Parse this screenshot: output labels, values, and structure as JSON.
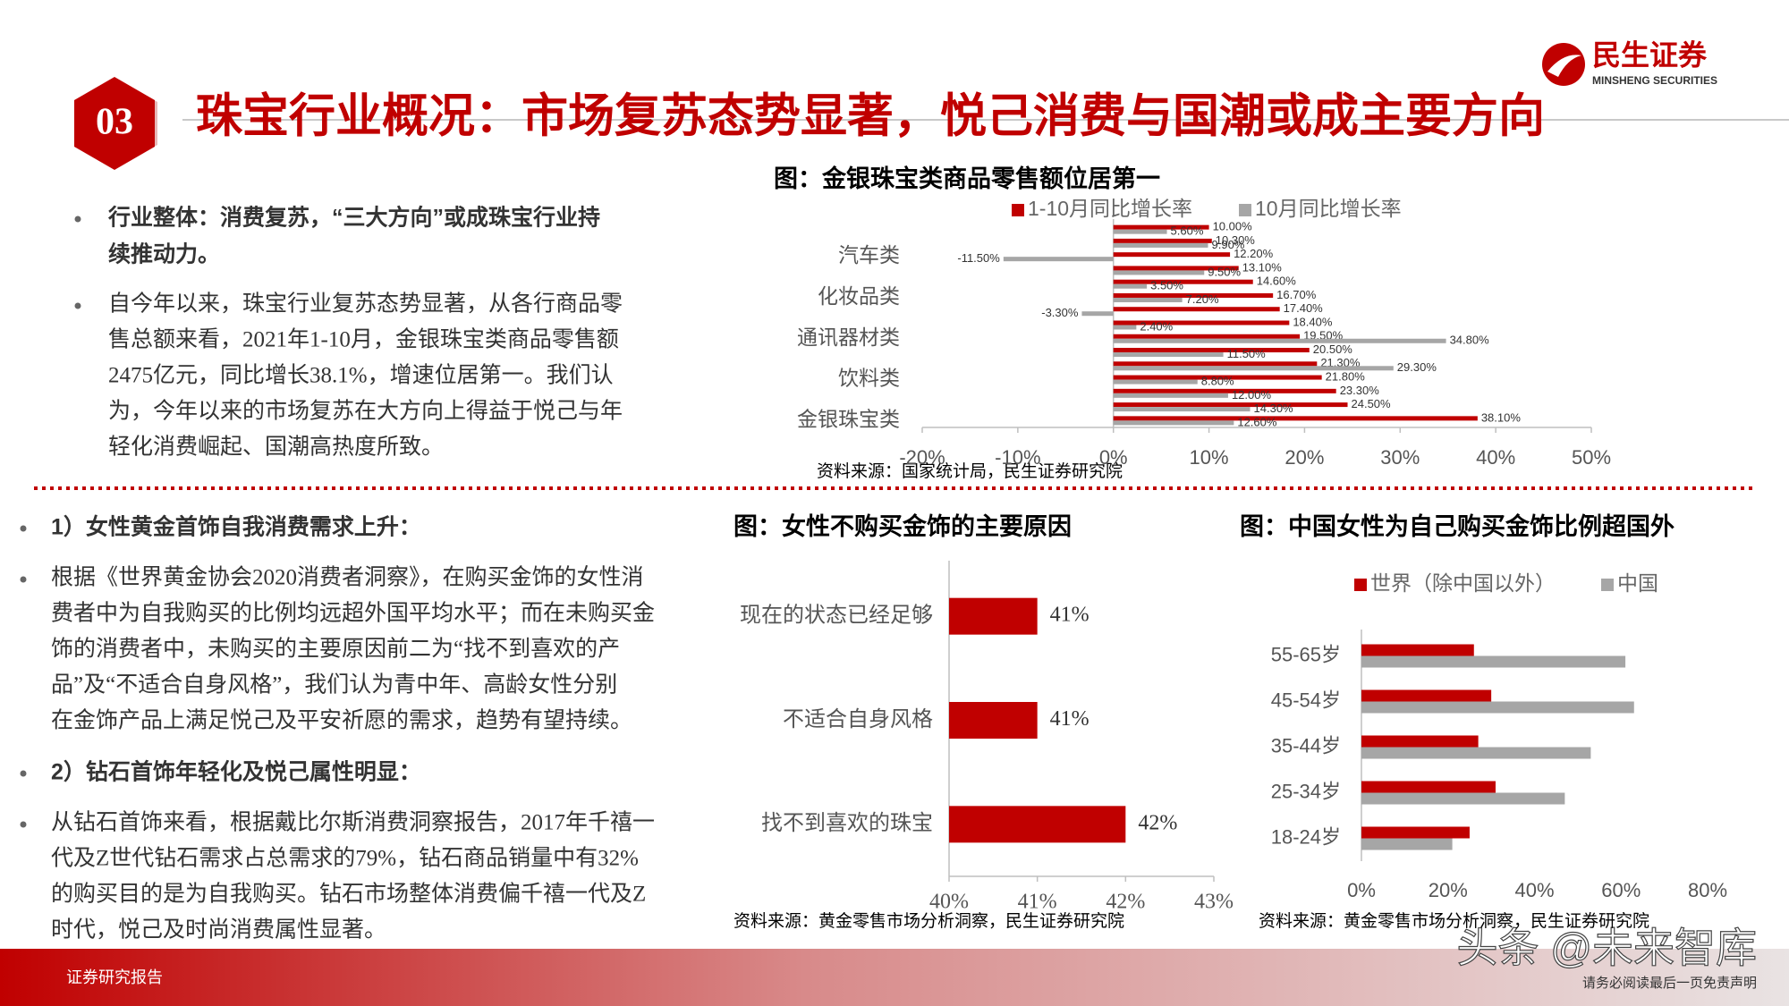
{
  "header": {
    "section": "03",
    "title": "珠宝行业概况：市场复苏态势显著，悦己消费与国潮或成主要方向",
    "logo_name": "民生证券",
    "logo_sub": "MINSHENG SECURITIES"
  },
  "summary": {
    "heading_lines": [
      "行业整体：消费复苏，“三大方向”或成珠宝行业持",
      "续推动力。"
    ],
    "body_lines": [
      "自今年以来，珠宝行业复苏态势显著，从各行商品零",
      "售总额来看，2021年1-10月，金银珠宝类商品零售额",
      "2475亿元，同比增长38.1%，增速位居第一。我们认",
      "为，今年以来的市场复苏在大方向上得益于悦己与年",
      "轻化消费崛起、国潮高热度所致。"
    ]
  },
  "details": [
    {
      "heading": "1）女性黄金首饰自我消费需求上升：",
      "lines": [
        "根据《世界黄金协会2020消费者洞察》，在购买金饰的女性消",
        "费者中为自我购买的比例均远超外国平均水平；而在未购买金",
        "饰的消费者中，未购买的主要原因前二为“找不到喜欢的产",
        "品”及“不适合自身风格”，我们认为青中年、高龄女性分别",
        "在金饰产品上满足悦己及平安祈愿的需求，趋势有望持续。"
      ]
    },
    {
      "heading": "2）钻石首饰年轻化及悦己属性明显：",
      "lines": [
        "从钻石首饰来看，根据戴比尔斯消费洞察报告，2017年千禧一",
        "代及Z世代钻石需求占总需求的79%，钻石商品销量中有32%",
        "的购买目的是为自我购买。钻石市场整体消费偏千禧一代及Z",
        "时代，悦己及时尚消费属性显著。"
      ]
    }
  ],
  "chart_data": [
    {
      "type": "bar",
      "title": "图：金银珠宝类商品零售额位居第一",
      "categories": [
        null,
        null,
        "汽车类",
        null,
        null,
        "化妆品类",
        null,
        null,
        "通讯器材类",
        null,
        null,
        "饮料类",
        null,
        null,
        "金银珠宝类"
      ],
      "series": [
        {
          "name": "1-10月同比增长率",
          "color": "#c00000",
          "values": [
            10.0,
            10.3,
            12.2,
            13.1,
            14.6,
            16.7,
            17.4,
            18.4,
            19.5,
            20.5,
            21.3,
            21.8,
            23.3,
            24.5,
            38.1
          ],
          "value_labels": [
            "10.00%",
            "10.30%",
            "12.20%",
            "13.10%",
            "14.60%",
            "16.70%",
            "17.40%",
            "18.40%",
            "19.50%",
            "20.50%",
            "21.30%",
            "21.80%",
            "23.30%",
            "24.50%",
            "38.10%"
          ]
        },
        {
          "name": "10月同比增长率",
          "color": "#a6a6a6",
          "values": [
            5.6,
            9.9,
            -11.5,
            9.5,
            3.5,
            7.2,
            -3.3,
            2.4,
            34.8,
            11.5,
            29.3,
            8.8,
            12.0,
            14.3,
            12.6
          ],
          "value_labels": [
            "5.60%",
            "9.90%",
            "-11.50%",
            "9.50%",
            "3.50%",
            "7.20%",
            "-3.30%",
            "2.40%",
            "34.80%",
            "11.50%",
            "29.30%",
            "8.80%",
            "12.00%",
            "14.30%",
            "12.60%"
          ]
        }
      ],
      "xlim": [
        -20,
        50
      ],
      "xticks": [
        {
          "value": -20,
          "label": "-20%"
        },
        {
          "value": -10,
          "label": "-10%"
        },
        {
          "value": 0,
          "label": "0%"
        },
        {
          "value": 10,
          "label": "10%"
        },
        {
          "value": 20,
          "label": "20%"
        },
        {
          "value": 30,
          "label": "30%"
        },
        {
          "value": 40,
          "label": "40%"
        },
        {
          "value": 50,
          "label": "50%"
        }
      ],
      "legend": "top",
      "source": "资料来源：国家统计局，民生证券研究院"
    },
    {
      "type": "bar",
      "title": "图：女性不购买金饰的主要原因",
      "categories": [
        "现在的状态已经足够",
        "不适合自身风格",
        "找不到喜欢的珠宝"
      ],
      "values": [
        41,
        41,
        42
      ],
      "value_labels": [
        "41%",
        "41%",
        "42%"
      ],
      "color": "#c00000",
      "xlim": [
        40,
        43
      ],
      "xticks": [
        {
          "value": 40,
          "label": "40%"
        },
        {
          "value": 41,
          "label": "41%"
        },
        {
          "value": 42,
          "label": "42%"
        },
        {
          "value": 43,
          "label": "43%"
        }
      ],
      "source": "资料来源：黄金零售市场分析洞察，民生证券研究院"
    },
    {
      "type": "bar",
      "title": "图：中国女性为自己购买金饰比例超国外",
      "categories": [
        "55-65岁",
        "45-54岁",
        "35-44岁",
        "25-34岁",
        "18-24岁"
      ],
      "series": [
        {
          "name": "世界（除中国以外）",
          "color": "#c00000",
          "values": [
            26,
            30,
            27,
            31,
            25
          ]
        },
        {
          "name": "中国",
          "color": "#a6a6a6",
          "values": [
            61,
            63,
            53,
            47,
            21
          ]
        }
      ],
      "xlim": [
        0,
        80
      ],
      "xticks": [
        {
          "value": 0,
          "label": "0%"
        },
        {
          "value": 20,
          "label": "20%"
        },
        {
          "value": 40,
          "label": "40%"
        },
        {
          "value": 60,
          "label": "60%"
        },
        {
          "value": 80,
          "label": "80%"
        }
      ],
      "legend": "top",
      "source": "资料来源：黄金零售市场分析洞察，民生证券研究院"
    }
  ],
  "footer": {
    "label": "证券研究报告",
    "disclaimer": "请务必阅读最后一页免责声明",
    "watermark": "头条 @未来智库"
  }
}
